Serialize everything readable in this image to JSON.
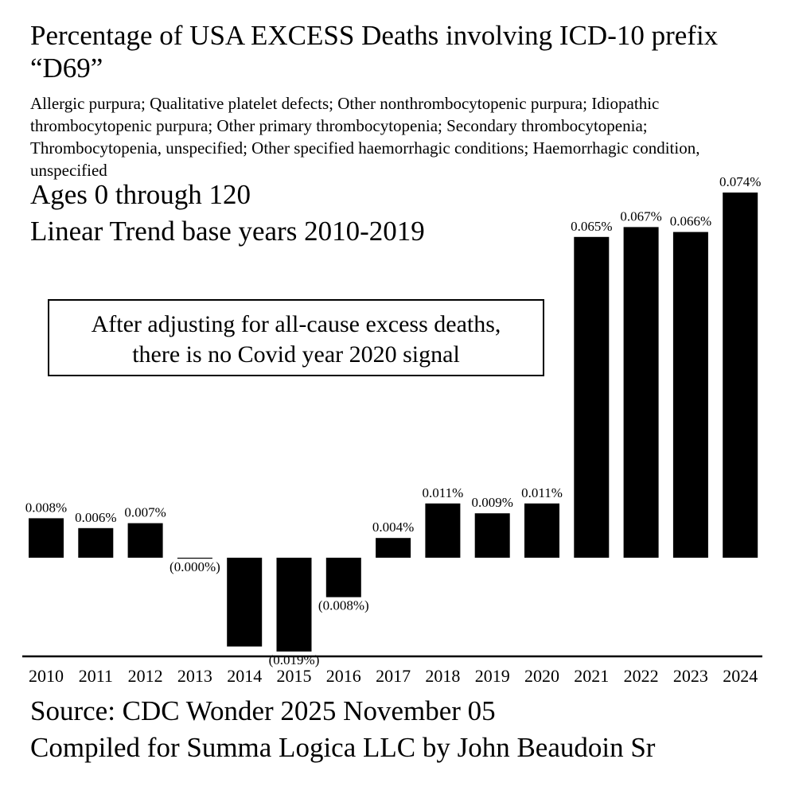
{
  "chart_data": {
    "type": "bar",
    "title": "Percentage of USA EXCESS Deaths involving ICD-10 prefix “D69”",
    "subtitle": "Allergic purpura; Qualitative platelet defects; Other nonthrombocytopenic purpura; Idiopathic thrombocytopenic purpura; Other primary thrombocytopenia; Secondary thrombocytopenia; Thrombocytopenia, unspecified; Other specified haemorrhagic conditions; Haemorrhagic condition, unspecified",
    "ages": "Ages 0 through 120",
    "trend_note": "Linear Trend base years 2010-2019",
    "annotation_line1": "After adjusting for all-cause excess deaths,",
    "annotation_line2": "there is no Covid year 2020 signal",
    "categories": [
      "2010",
      "2011",
      "2012",
      "2013",
      "2014",
      "2015",
      "2016",
      "2017",
      "2018",
      "2019",
      "2020",
      "2021",
      "2022",
      "2023",
      "2024"
    ],
    "values": [
      0.008,
      0.006,
      0.007,
      -0.0002,
      -0.018,
      -0.019,
      -0.008,
      0.004,
      0.011,
      0.009,
      0.011,
      0.065,
      0.067,
      0.066,
      0.074
    ],
    "data_labels": [
      "0.008%",
      "0.006%",
      "0.007%",
      "(0.000%)",
      "",
      "(0.019%)",
      "(0.008%)",
      "0.004%",
      "0.011%",
      "0.009%",
      "0.011%",
      "0.065%",
      "0.067%",
      "0.066%",
      "0.074%"
    ],
    "ylabel": "",
    "xlabel": "",
    "unit": "%",
    "ylim": [
      -0.0206,
      0.0745
    ],
    "bar_color": "#000000",
    "grid": false,
    "legend": "none"
  },
  "footer": {
    "source": "Source: CDC Wonder 2025 November 05",
    "credit": "Compiled for Summa Logica LLC by John Beaudoin Sr"
  }
}
